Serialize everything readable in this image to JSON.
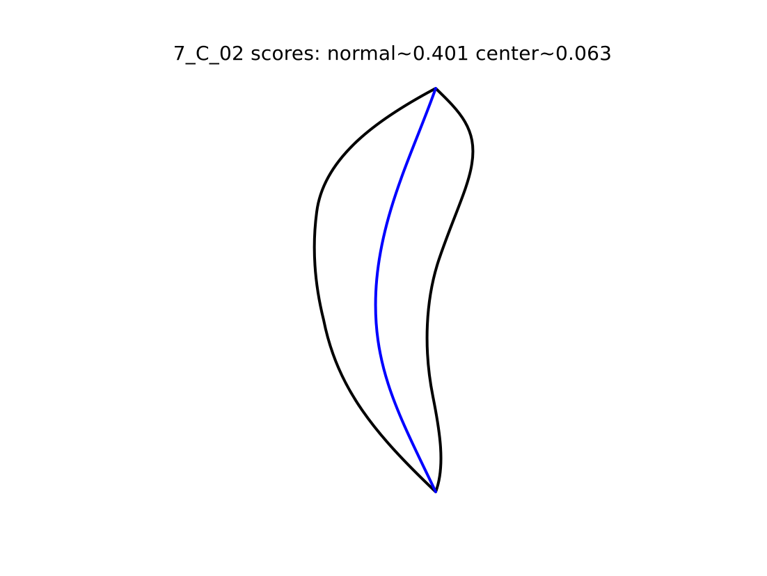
{
  "figure": {
    "title": "7_C_02 scores: normal~0.401 center~0.063"
  },
  "shapes": {
    "outline": {
      "color": "#000000"
    },
    "centerline": {
      "color": "#0000ff"
    }
  }
}
